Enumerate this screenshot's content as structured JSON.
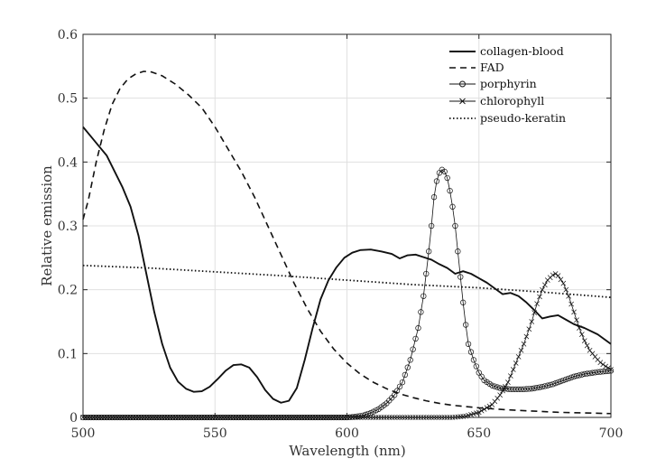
{
  "chart_data": {
    "type": "line",
    "xlabel": "Wavelength (nm)",
    "ylabel": "Relative emission",
    "xlim": [
      500,
      700
    ],
    "ylim": [
      0,
      0.6
    ],
    "x_ticks": [
      "500",
      "550",
      "600",
      "650",
      "700"
    ],
    "y_ticks": [
      "0",
      "0.1",
      "0.2",
      "0.3",
      "0.4",
      "0.5",
      "0.6"
    ],
    "grid": true,
    "legend_position": "top-right",
    "series": [
      {
        "name": "collagen-blood",
        "style": "solid-thick",
        "color": "#111111",
        "points": [
          [
            500,
            0.455
          ],
          [
            503,
            0.44
          ],
          [
            506,
            0.425
          ],
          [
            509,
            0.41
          ],
          [
            512,
            0.385
          ],
          [
            515,
            0.36
          ],
          [
            518,
            0.33
          ],
          [
            521,
            0.285
          ],
          [
            524,
            0.225
          ],
          [
            527,
            0.165
          ],
          [
            530,
            0.115
          ],
          [
            533,
            0.078
          ],
          [
            536,
            0.056
          ],
          [
            539,
            0.045
          ],
          [
            542,
            0.04
          ],
          [
            545,
            0.041
          ],
          [
            548,
            0.048
          ],
          [
            551,
            0.06
          ],
          [
            554,
            0.073
          ],
          [
            557,
            0.082
          ],
          [
            560,
            0.083
          ],
          [
            563,
            0.078
          ],
          [
            566,
            0.063
          ],
          [
            569,
            0.043
          ],
          [
            572,
            0.029
          ],
          [
            575,
            0.023
          ],
          [
            578,
            0.026
          ],
          [
            581,
            0.046
          ],
          [
            584,
            0.09
          ],
          [
            587,
            0.14
          ],
          [
            590,
            0.185
          ],
          [
            593,
            0.215
          ],
          [
            596,
            0.235
          ],
          [
            599,
            0.25
          ],
          [
            602,
            0.258
          ],
          [
            605,
            0.262
          ],
          [
            609,
            0.263
          ],
          [
            613,
            0.26
          ],
          [
            617,
            0.256
          ],
          [
            620,
            0.249
          ],
          [
            623,
            0.254
          ],
          [
            626,
            0.255
          ],
          [
            629,
            0.251
          ],
          [
            632,
            0.247
          ],
          [
            635,
            0.24
          ],
          [
            638,
            0.234
          ],
          [
            641,
            0.225
          ],
          [
            644,
            0.229
          ],
          [
            647,
            0.225
          ],
          [
            650,
            0.218
          ],
          [
            653,
            0.211
          ],
          [
            656,
            0.202
          ],
          [
            659,
            0.193
          ],
          [
            662,
            0.195
          ],
          [
            665,
            0.19
          ],
          [
            668,
            0.18
          ],
          [
            671,
            0.168
          ],
          [
            674,
            0.155
          ],
          [
            677,
            0.158
          ],
          [
            680,
            0.16
          ],
          [
            683,
            0.153
          ],
          [
            686,
            0.146
          ],
          [
            690,
            0.14
          ],
          [
            695,
            0.13
          ],
          [
            700,
            0.115
          ]
        ]
      },
      {
        "name": "FAD",
        "style": "dashed",
        "color": "#111111",
        "points": [
          [
            500,
            0.31
          ],
          [
            502,
            0.34
          ],
          [
            505,
            0.4
          ],
          [
            508,
            0.45
          ],
          [
            511,
            0.49
          ],
          [
            514,
            0.515
          ],
          [
            517,
            0.53
          ],
          [
            520,
            0.538
          ],
          [
            523,
            0.542
          ],
          [
            526,
            0.541
          ],
          [
            530,
            0.535
          ],
          [
            535,
            0.522
          ],
          [
            540,
            0.505
          ],
          [
            545,
            0.485
          ],
          [
            550,
            0.455
          ],
          [
            555,
            0.42
          ],
          [
            560,
            0.385
          ],
          [
            565,
            0.345
          ],
          [
            570,
            0.3
          ],
          [
            575,
            0.255
          ],
          [
            580,
            0.21
          ],
          [
            585,
            0.17
          ],
          [
            590,
            0.135
          ],
          [
            595,
            0.107
          ],
          [
            600,
            0.085
          ],
          [
            605,
            0.068
          ],
          [
            610,
            0.055
          ],
          [
            615,
            0.045
          ],
          [
            620,
            0.037
          ],
          [
            625,
            0.031
          ],
          [
            630,
            0.026
          ],
          [
            635,
            0.022
          ],
          [
            640,
            0.019
          ],
          [
            645,
            0.017
          ],
          [
            650,
            0.015
          ],
          [
            660,
            0.012
          ],
          [
            670,
            0.01
          ],
          [
            680,
            0.008
          ],
          [
            690,
            0.007
          ],
          [
            700,
            0.006
          ]
        ]
      },
      {
        "name": "porphyrin",
        "style": "solid-thin-circle-markers",
        "color": "#111111",
        "points": [
          [
            500,
            0.0
          ],
          [
            600,
            0.0
          ],
          [
            603,
            0.001
          ],
          [
            606,
            0.003
          ],
          [
            609,
            0.007
          ],
          [
            612,
            0.013
          ],
          [
            615,
            0.022
          ],
          [
            618,
            0.035
          ],
          [
            621,
            0.055
          ],
          [
            624,
            0.09
          ],
          [
            627,
            0.14
          ],
          [
            629,
            0.19
          ],
          [
            631,
            0.26
          ],
          [
            632,
            0.3
          ],
          [
            633,
            0.345
          ],
          [
            634,
            0.37
          ],
          [
            635,
            0.383
          ],
          [
            636,
            0.388
          ],
          [
            637,
            0.385
          ],
          [
            638,
            0.375
          ],
          [
            639,
            0.355
          ],
          [
            640,
            0.33
          ],
          [
            641,
            0.3
          ],
          [
            642,
            0.26
          ],
          [
            643,
            0.22
          ],
          [
            644,
            0.18
          ],
          [
            645,
            0.145
          ],
          [
            646,
            0.115
          ],
          [
            648,
            0.09
          ],
          [
            650,
            0.07
          ],
          [
            652,
            0.058
          ],
          [
            655,
            0.05
          ],
          [
            658,
            0.046
          ],
          [
            662,
            0.044
          ],
          [
            666,
            0.044
          ],
          [
            670,
            0.045
          ],
          [
            674,
            0.048
          ],
          [
            678,
            0.052
          ],
          [
            682,
            0.058
          ],
          [
            686,
            0.064
          ],
          [
            690,
            0.068
          ],
          [
            695,
            0.071
          ],
          [
            700,
            0.073
          ]
        ]
      },
      {
        "name": "chlorophyll",
        "style": "solid-thin-x-markers",
        "color": "#111111",
        "points": [
          [
            500,
            0.0
          ],
          [
            640,
            0.0
          ],
          [
            645,
            0.002
          ],
          [
            650,
            0.008
          ],
          [
            655,
            0.02
          ],
          [
            658,
            0.035
          ],
          [
            661,
            0.055
          ],
          [
            664,
            0.085
          ],
          [
            667,
            0.115
          ],
          [
            670,
            0.15
          ],
          [
            672,
            0.178
          ],
          [
            674,
            0.2
          ],
          [
            676,
            0.215
          ],
          [
            678,
            0.223
          ],
          [
            679,
            0.225
          ],
          [
            680,
            0.222
          ],
          [
            682,
            0.21
          ],
          [
            684,
            0.19
          ],
          [
            686,
            0.165
          ],
          [
            688,
            0.14
          ],
          [
            690,
            0.12
          ],
          [
            692,
            0.105
          ],
          [
            694,
            0.095
          ],
          [
            696,
            0.086
          ],
          [
            698,
            0.08
          ],
          [
            700,
            0.075
          ]
        ]
      },
      {
        "name": "pseudo-keratin",
        "style": "dotted",
        "color": "#111111",
        "points": [
          [
            500,
            0.238
          ],
          [
            525,
            0.234
          ],
          [
            550,
            0.228
          ],
          [
            575,
            0.222
          ],
          [
            600,
            0.215
          ],
          [
            625,
            0.208
          ],
          [
            650,
            0.203
          ],
          [
            675,
            0.196
          ],
          [
            700,
            0.188
          ]
        ]
      }
    ]
  }
}
